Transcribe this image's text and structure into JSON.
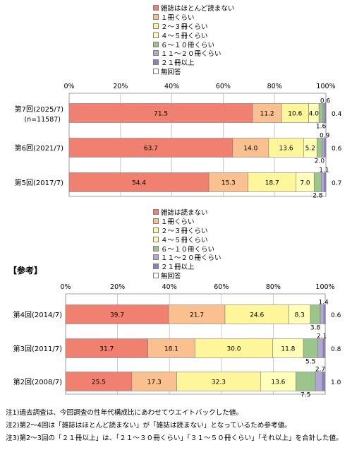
{
  "colors": [
    "#f08070",
    "#fac090",
    "#fff59a",
    "#ffffb8",
    "#9bc58a",
    "#b0a7d6",
    "#9080c0",
    "#ffffff"
  ],
  "legend_top": {
    "items": [
      "雑誌はほとんど読まない",
      "１冊くらい",
      "２～３冊くらい",
      "４～５冊くらい",
      "６～１０冊くらい",
      "１１～２０冊くらい",
      "２１冊以上",
      "無回答"
    ]
  },
  "legend_bottom": {
    "items": [
      "雑誌は読まない",
      "１冊くらい",
      "２～３冊くらい",
      "４～５冊くらい",
      "６～１０冊くらい",
      "１１～２０冊くらい",
      "２１冊以上",
      "無回答"
    ]
  },
  "reference_label": "【参考】",
  "notes": [
    "注1)過去調査は、今回調査の性年代構成比にあわせてウエイトバックした値。",
    "注2)第2～4回は「雑誌はほとんど読まない」が「雑誌は読まない」となっているため参考値。",
    "注3)第2～3回の「２１冊以上」は、「２１～３０冊くらい」「３１～５０冊くらい」「それ以上」を合計した値。"
  ],
  "chart_data": [
    {
      "type": "bar",
      "orientation": "horizontal-stacked",
      "xlim": [
        0,
        100
      ],
      "tick_labels": [
        "0%",
        "20%",
        "40%",
        "60%",
        "80%",
        "100%"
      ],
      "categories": [
        "第7回(2025/7)",
        "第6回(2021/7)",
        "第5回(2017/7)"
      ],
      "category_sublabels": [
        "(n=11587)",
        "",
        ""
      ],
      "series": [
        {
          "name": "雑誌はほとんど読まない",
          "values": [
            71.5,
            63.7,
            54.4
          ]
        },
        {
          "name": "１冊くらい",
          "values": [
            11.2,
            14.0,
            15.3
          ]
        },
        {
          "name": "２～３冊くらい",
          "values": [
            10.6,
            13.6,
            18.7
          ]
        },
        {
          "name": "４～５冊くらい",
          "values": [
            4.0,
            5.2,
            7.0
          ]
        },
        {
          "name": "６～１０冊くらい",
          "values": [
            1.6,
            2.0,
            2.8
          ]
        },
        {
          "name": "１１～２０冊くらい",
          "values": [
            0.6,
            0.9,
            1.1
          ]
        },
        {
          "name": "２１冊以上",
          "values": [
            0.4,
            0.6,
            0.7
          ]
        },
        {
          "name": "無回答",
          "values": [
            0.1,
            0.0,
            0.0
          ]
        }
      ]
    },
    {
      "type": "bar",
      "orientation": "horizontal-stacked",
      "xlim": [
        0,
        100
      ],
      "tick_labels": [
        "0%",
        "20%",
        "40%",
        "60%",
        "80%",
        "100%"
      ],
      "categories": [
        "第4回(2014/7)",
        "第3回(2011/7)",
        "第2回(2008/7)"
      ],
      "category_sublabels": [
        "",
        "",
        ""
      ],
      "series": [
        {
          "name": "雑誌は読まない",
          "values": [
            39.7,
            31.7,
            25.5
          ]
        },
        {
          "name": "１冊くらい",
          "values": [
            21.7,
            18.1,
            17.3
          ]
        },
        {
          "name": "２～３冊くらい",
          "values": [
            24.6,
            30.0,
            32.3
          ]
        },
        {
          "name": "４～５冊くらい",
          "values": [
            8.3,
            11.8,
            13.6
          ]
        },
        {
          "name": "６～１０冊くらい",
          "values": [
            3.8,
            5.5,
            7.5
          ]
        },
        {
          "name": "１１～２０冊くらい",
          "values": [
            1.4,
            2.1,
            2.7
          ]
        },
        {
          "name": "２１冊以上",
          "values": [
            0.6,
            0.8,
            1.0
          ]
        },
        {
          "name": "無回答",
          "values": [
            0.0,
            0.0,
            0.0
          ]
        }
      ]
    }
  ]
}
